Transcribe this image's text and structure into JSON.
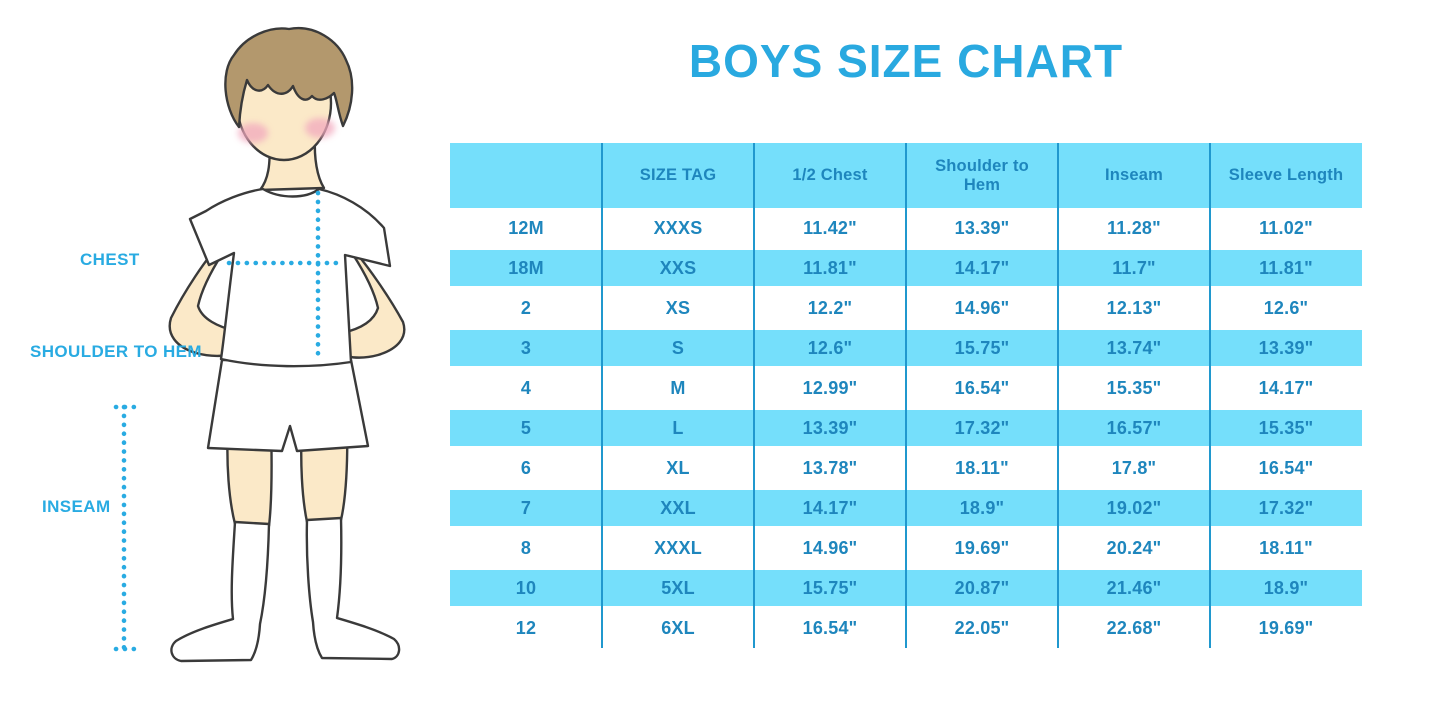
{
  "title": "BOYS SIZE CHART",
  "figure": {
    "labels": [
      {
        "id": "chest",
        "text": "CHEST"
      },
      {
        "id": "shoulder_to_hem",
        "text": "SHOULDER TO HEM"
      },
      {
        "id": "inseam",
        "text": "INSEAM"
      }
    ]
  },
  "colors": {
    "title_blue": "#29A9E0",
    "label_cyan": "#29ABE2",
    "row_blue": "#75DFFB",
    "cell_text_blue": "#1E86BD",
    "separator_blue": "#2098CE",
    "skin": "#FBE9C8",
    "hair_brown": "#B3986D",
    "blush_pink": "#F2A9BE"
  },
  "chart_data": {
    "type": "table",
    "title": "BOYS SIZE CHART",
    "columns": [
      "",
      "SIZE TAG",
      "1/2 Chest",
      "Shoulder to Hem",
      "Inseam",
      "Sleeve Length"
    ],
    "rows": [
      [
        "12M",
        "XXXS",
        "11.42\"",
        "13.39\"",
        "11.28\"",
        "11.02\""
      ],
      [
        "18M",
        "XXS",
        "11.81\"",
        "14.17\"",
        "11.7\"",
        "11.81\""
      ],
      [
        "2",
        "XS",
        "12.2\"",
        "14.96\"",
        "12.13\"",
        "12.6\""
      ],
      [
        "3",
        "S",
        "12.6\"",
        "15.75\"",
        "13.74\"",
        "13.39\""
      ],
      [
        "4",
        "M",
        "12.99\"",
        "16.54\"",
        "15.35\"",
        "14.17\""
      ],
      [
        "5",
        "L",
        "13.39\"",
        "17.32\"",
        "16.57\"",
        "15.35\""
      ],
      [
        "6",
        "XL",
        "13.78\"",
        "18.11\"",
        "17.8\"",
        "16.54\""
      ],
      [
        "7",
        "XXL",
        "14.17\"",
        "18.9\"",
        "19.02\"",
        "17.32\""
      ],
      [
        "8",
        "XXXL",
        "14.96\"",
        "19.69\"",
        "20.24\"",
        "18.11\""
      ],
      [
        "10",
        "5XL",
        "15.75\"",
        "20.87\"",
        "21.46\"",
        "18.9\""
      ],
      [
        "12",
        "6XL",
        "16.54\"",
        "22.05\"",
        "22.68\"",
        "19.69\""
      ]
    ],
    "row_striping": "white/light-blue alternating, header light blue",
    "legend_position": "none",
    "grid": "vertical separators only"
  }
}
